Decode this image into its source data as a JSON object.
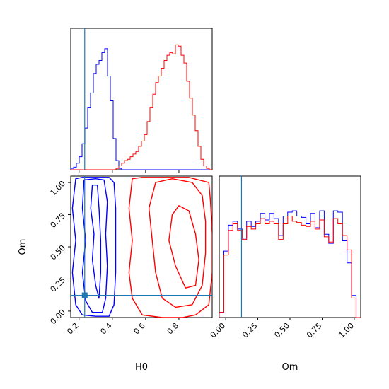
{
  "chart_data": {
    "type": "corner",
    "colors": {
      "series_a": "#0000ff",
      "series_b": "#ff0000",
      "truth": "#1f77b4"
    },
    "parameters": [
      {
        "label": "H0",
        "range": [
          0.15,
          1.0
        ],
        "ticks": [
          0.2,
          0.4,
          0.6,
          0.8
        ],
        "tick_labels": [
          "0.2",
          "0.4",
          "0.6",
          "0.8"
        ],
        "truth": 0.234
      },
      {
        "label": "Om",
        "range": [
          -0.05,
          1.05
        ],
        "ticks": [
          0.0,
          0.25,
          0.5,
          0.75,
          1.0
        ],
        "tick_labels": [
          "0.00",
          "0.25",
          "0.50",
          "0.75",
          "1.00"
        ],
        "truth": 0.123
      }
    ],
    "hist_H0": {
      "bin_edges_range": [
        0.15,
        1.0
      ],
      "series": [
        {
          "color": "blue",
          "counts": [
            0.01,
            0.02,
            0.05,
            0.1,
            0.2,
            0.32,
            0.48,
            0.59,
            0.74,
            0.81,
            0.84,
            0.9,
            0.93,
            0.72,
            0.53,
            0.24,
            0.07,
            0.01,
            0,
            0,
            0,
            0,
            0,
            0,
            0,
            0,
            0,
            0,
            0,
            0,
            0,
            0,
            0,
            0,
            0,
            0,
            0,
            0,
            0,
            0,
            0,
            0,
            0,
            0,
            0,
            0,
            0,
            0,
            0,
            0
          ]
        },
        {
          "color": "red",
          "counts": [
            0,
            0,
            0,
            0,
            0,
            0,
            0,
            0,
            0,
            0,
            0,
            0,
            0,
            0,
            0,
            0,
            0.01,
            0.03,
            0.05,
            0.07,
            0.08,
            0.1,
            0.12,
            0.14,
            0.18,
            0.22,
            0.27,
            0.37,
            0.48,
            0.58,
            0.67,
            0.72,
            0.78,
            0.84,
            0.88,
            0.9,
            0.89,
            0.96,
            0.95,
            0.88,
            0.82,
            0.68,
            0.55,
            0.42,
            0.3,
            0.18,
            0.08,
            0.03,
            0.01,
            0.0
          ]
        }
      ]
    },
    "hist_Om": {
      "bin_edges_range": [
        -0.05,
        1.05
      ],
      "series": [
        {
          "color": "blue",
          "counts": [
            0.04,
            0.51,
            0.71,
            0.74,
            0.68,
            0.61,
            0.74,
            0.7,
            0.74,
            0.8,
            0.75,
            0.8,
            0.76,
            0.63,
            0.78,
            0.81,
            0.82,
            0.78,
            0.77,
            0.72,
            0.8,
            0.69,
            0.82,
            0.64,
            0.57,
            0.82,
            0.81,
            0.59,
            0.42,
            0.17,
            0.0
          ]
        },
        {
          "color": "red",
          "counts": [
            0.04,
            0.48,
            0.67,
            0.72,
            0.67,
            0.6,
            0.7,
            0.68,
            0.72,
            0.76,
            0.72,
            0.74,
            0.72,
            0.6,
            0.72,
            0.78,
            0.74,
            0.73,
            0.71,
            0.7,
            0.74,
            0.68,
            0.75,
            0.62,
            0.58,
            0.76,
            0.72,
            0.63,
            0.52,
            0.15,
            0.0
          ]
        }
      ]
    },
    "contours_H0_Om": {
      "series": [
        {
          "color": "blue",
          "levels": [
            [
              [
                0.18,
                1.03
              ],
              [
                0.16,
                0.8
              ],
              [
                0.18,
                0.55
              ],
              [
                0.16,
                0.3
              ],
              [
                0.18,
                0.05
              ],
              [
                0.22,
                -0.03
              ],
              [
                0.3,
                -0.04
              ],
              [
                0.38,
                -0.04
              ],
              [
                0.41,
                0.05
              ],
              [
                0.42,
                0.3
              ],
              [
                0.42,
                0.55
              ],
              [
                0.42,
                0.8
              ],
              [
                0.41,
                1.0
              ],
              [
                0.38,
                1.04
              ],
              [
                0.3,
                1.04
              ],
              [
                0.22,
                1.04
              ]
            ],
            [
              [
                0.23,
                1.02
              ],
              [
                0.22,
                0.8
              ],
              [
                0.24,
                0.55
              ],
              [
                0.22,
                0.3
              ],
              [
                0.24,
                0.08
              ],
              [
                0.28,
                -0.01
              ],
              [
                0.34,
                -0.01
              ],
              [
                0.36,
                0.1
              ],
              [
                0.37,
                0.35
              ],
              [
                0.36,
                0.6
              ],
              [
                0.37,
                0.85
              ],
              [
                0.35,
                1.02
              ],
              [
                0.3,
                1.03
              ]
            ],
            [
              [
                0.28,
                0.98
              ],
              [
                0.27,
                0.8
              ],
              [
                0.29,
                0.6
              ],
              [
                0.28,
                0.4
              ],
              [
                0.3,
                0.2
              ],
              [
                0.32,
                0.1
              ],
              [
                0.33,
                0.3
              ],
              [
                0.33,
                0.55
              ],
              [
                0.32,
                0.8
              ],
              [
                0.31,
                0.98
              ]
            ]
          ]
        },
        {
          "color": "red",
          "levels": [
            [
              [
                0.52,
                1.03
              ],
              [
                0.5,
                0.8
              ],
              [
                0.52,
                0.55
              ],
              [
                0.5,
                0.3
              ],
              [
                0.52,
                0.1
              ],
              [
                0.58,
                -0.03
              ],
              [
                0.7,
                -0.05
              ],
              [
                0.82,
                -0.05
              ],
              [
                0.9,
                -0.03
              ],
              [
                0.98,
                0.05
              ],
              [
                1.0,
                0.3
              ],
              [
                1.0,
                0.6
              ],
              [
                0.99,
                0.85
              ],
              [
                0.98,
                1.0
              ],
              [
                0.86,
                1.04
              ],
              [
                0.7,
                1.04
              ],
              [
                0.58,
                1.04
              ]
            ],
            [
              [
                0.66,
                1.0
              ],
              [
                0.62,
                0.8
              ],
              [
                0.64,
                0.55
              ],
              [
                0.66,
                0.3
              ],
              [
                0.7,
                0.1
              ],
              [
                0.78,
                0.03
              ],
              [
                0.88,
                0.05
              ],
              [
                0.94,
                0.2
              ],
              [
                0.96,
                0.45
              ],
              [
                0.96,
                0.7
              ],
              [
                0.94,
                0.9
              ],
              [
                0.88,
                1.0
              ],
              [
                0.76,
                1.03
              ]
            ],
            [
              [
                0.76,
                0.75
              ],
              [
                0.74,
                0.55
              ],
              [
                0.78,
                0.35
              ],
              [
                0.84,
                0.18
              ],
              [
                0.9,
                0.2
              ],
              [
                0.92,
                0.4
              ],
              [
                0.9,
                0.6
              ],
              [
                0.86,
                0.78
              ],
              [
                0.8,
                0.82
              ]
            ]
          ]
        }
      ]
    },
    "truth_marker": {
      "H0": 0.234,
      "Om": 0.123
    }
  }
}
